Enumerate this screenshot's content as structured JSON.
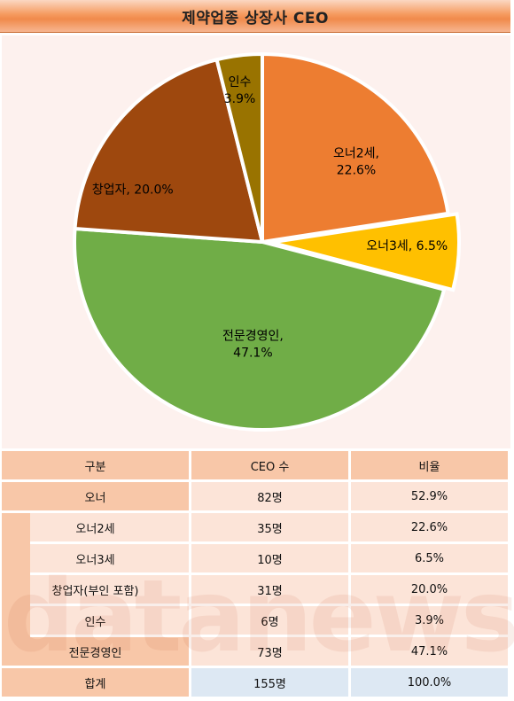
{
  "title": "제약업종 상장사 CEO",
  "chart_data": {
    "type": "pie",
    "slices": [
      {
        "label": "오너2세",
        "value": 22.6,
        "display": "22.6%",
        "color": "#ed7d31"
      },
      {
        "label": "오너3세",
        "value": 6.5,
        "display": "6.5%",
        "color": "#ffc000"
      },
      {
        "label": "전문경영인",
        "value": 47.1,
        "display": "47.1%",
        "color": "#70ad47"
      },
      {
        "label": "창업자",
        "value": 20.0,
        "display": "20.0%",
        "color": "#9e480e"
      },
      {
        "label": "인수",
        "value": 3.9,
        "display": "3.9%",
        "color": "#997300"
      }
    ]
  },
  "table": {
    "headers": [
      "구분",
      "CEO 수",
      "비율"
    ],
    "rows": [
      {
        "label": "오너",
        "count": "82명",
        "ratio": "52.9%",
        "sub": false
      },
      {
        "label": "오너2세",
        "count": "35명",
        "ratio": "22.6%",
        "sub": true
      },
      {
        "label": "오너3세",
        "count": "10명",
        "ratio": "6.5%",
        "sub": true
      },
      {
        "label": "창업자(부인 포함)",
        "count": "31명",
        "ratio": "20.0%",
        "sub": true
      },
      {
        "label": "인수",
        "count": "6명",
        "ratio": "3.9%",
        "sub": true
      },
      {
        "label": "전문경영인",
        "count": "73명",
        "ratio": "47.1%",
        "sub": false
      }
    ],
    "total": {
      "label": "합계",
      "count": "155명",
      "ratio": "100.0%"
    }
  },
  "watermark": "datanews"
}
